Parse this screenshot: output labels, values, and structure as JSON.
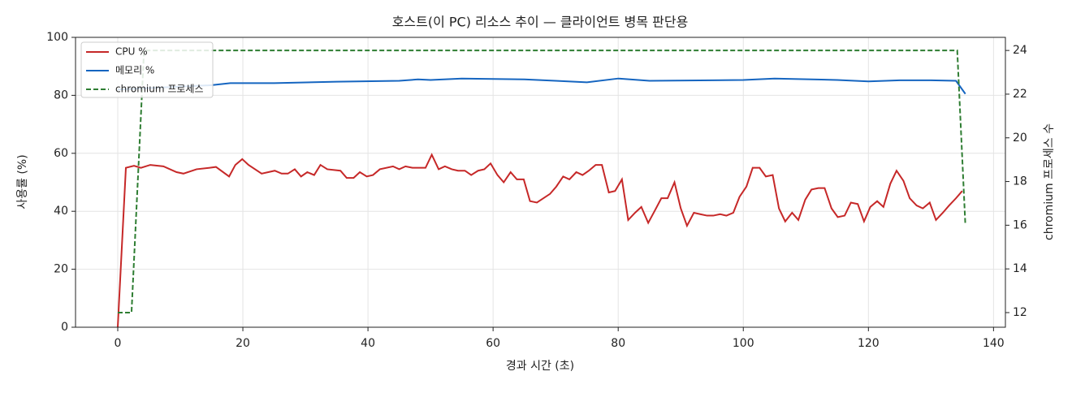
{
  "chart_data": {
    "type": "line",
    "title": "호스트(이 PC) 리소스 추이 — 클라이언트 병목 판단용",
    "xlabel": "경과 시간 (초)",
    "ylabel": "사용률 (%)",
    "y2label": "chromium 프로세스 수",
    "xlim": [
      -6.75,
      141.9
    ],
    "xticks": [
      0,
      20,
      40,
      60,
      80,
      100,
      120,
      140
    ],
    "ylim": [
      0,
      100
    ],
    "yticks": [
      0,
      20,
      40,
      60,
      80,
      100
    ],
    "y2lim": [
      11.33,
      24.6
    ],
    "y2ticks": [
      12,
      14,
      16,
      18,
      20,
      22,
      24
    ],
    "grid": true,
    "legend": "upper left",
    "series": [
      {
        "name": "CPU %",
        "color": "#c62828",
        "style": "solid",
        "x": [
          0,
          1.3,
          2.6,
          3.7,
          5.2,
          7.3,
          9.4,
          10.5,
          12.6,
          14.7,
          15.7,
          17.8,
          18.8,
          19.9,
          20.9,
          23.0,
          25.1,
          26.2,
          27.2,
          28.3,
          29.3,
          30.3,
          31.4,
          32.4,
          33.5,
          35.6,
          36.6,
          37.7,
          38.7,
          39.8,
          40.8,
          41.9,
          44.0,
          45.0,
          46.0,
          47.1,
          48.1,
          49.2,
          50.2,
          51.3,
          52.3,
          53.4,
          54.4,
          55.5,
          56.5,
          57.6,
          58.6,
          59.6,
          60.7,
          61.7,
          62.8,
          63.8,
          64.9,
          65.9,
          67.0,
          69.1,
          70.1,
          71.2,
          72.2,
          73.3,
          74.3,
          75.3,
          76.4,
          77.4,
          78.5,
          79.5,
          80.6,
          81.6,
          82.7,
          83.7,
          84.8,
          85.8,
          86.9,
          87.9,
          89.0,
          90.0,
          91.0,
          92.1,
          93.1,
          94.2,
          95.2,
          96.3,
          97.3,
          98.4,
          99.4,
          100.5,
          101.5,
          102.6,
          103.6,
          104.7,
          105.7,
          106.7,
          107.8,
          108.8,
          109.9,
          110.9,
          112.0,
          113.0,
          114.1,
          115.1,
          116.2,
          117.2,
          118.3,
          119.3,
          120.3,
          121.4,
          122.4,
          123.5,
          124.5,
          125.6,
          126.6,
          127.7,
          128.7,
          129.8,
          130.8,
          131.9,
          132.9,
          134.0,
          135.0
        ],
        "values": [
          0,
          55,
          55.7,
          55,
          56,
          55.5,
          53.5,
          53,
          54.5,
          55,
          55.3,
          52,
          56,
          58,
          56,
          53,
          54,
          53,
          53,
          54.5,
          52,
          53.5,
          52.5,
          56,
          54.5,
          54,
          51.5,
          51.5,
          53.5,
          52,
          52.5,
          54.5,
          55.5,
          54.5,
          55.5,
          55,
          55,
          55,
          59.5,
          54.5,
          55.5,
          54.5,
          54,
          54,
          52.5,
          54,
          54.5,
          56.5,
          52.5,
          50,
          53.5,
          51,
          51,
          43.5,
          43,
          46,
          48.5,
          52,
          51,
          53.5,
          52.5,
          54,
          56,
          56,
          46.5,
          47,
          51,
          37,
          39.5,
          41.5,
          36,
          40,
          44.5,
          44.5,
          50,
          41,
          35,
          39.5,
          39,
          38.5,
          38.5,
          39,
          38.5,
          39.5,
          45,
          48.5,
          55,
          55,
          52,
          52.5,
          41,
          36.5,
          39.5,
          37,
          44,
          47.5,
          48,
          48,
          41,
          38,
          38.5,
          43,
          42.5,
          36.5,
          41.5,
          43.5,
          41.5,
          49.5,
          54,
          50.5,
          44.5,
          42,
          41,
          43,
          37,
          39.5,
          42,
          44.5,
          47
        ]
      },
      {
        "name": "메모리 %",
        "color": "#1565c0",
        "style": "solid",
        "x": [
          0,
          15,
          18,
          25,
          35,
          45,
          48,
          50,
          55,
          65,
          70,
          75,
          80,
          85,
          95,
          100,
          105,
          115,
          120,
          125,
          130,
          134,
          135.5
        ],
        "values": [
          82,
          83.5,
          84.2,
          84.2,
          84.7,
          85,
          85.5,
          85.3,
          85.8,
          85.5,
          85,
          84.5,
          85.8,
          85,
          85.2,
          85.3,
          85.8,
          85.3,
          84.8,
          85.2,
          85.2,
          85,
          80.5
        ]
      },
      {
        "name": "chromium 프로세스",
        "color": "#2e7d32",
        "style": "dashed",
        "axis": "y2",
        "x": [
          0,
          2.2,
          4.2,
          134.2,
          135.5
        ],
        "values": [
          12,
          12,
          24,
          24,
          16
        ]
      }
    ]
  }
}
